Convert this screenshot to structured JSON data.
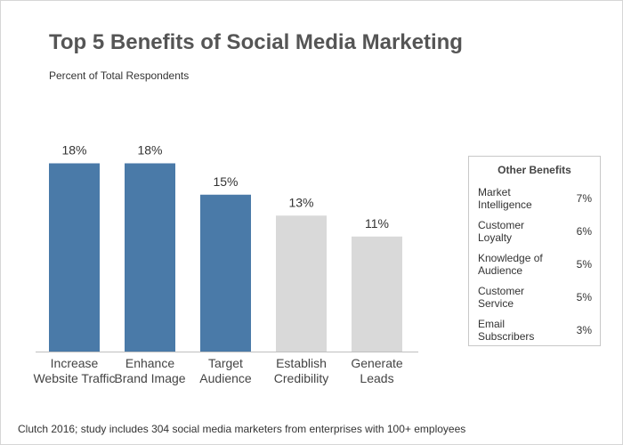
{
  "header": {
    "title": "Top 5 Benefits of Social Media Marketing",
    "subtitle": "Percent of Total Respondents"
  },
  "chart_data": {
    "type": "bar",
    "title": "Top 5 Benefits of Social Media Marketing",
    "subtitle": "Percent of Total Respondents",
    "categories": [
      [
        "Increase",
        "Website Traffic"
      ],
      [
        "Enhance",
        "Brand Image"
      ],
      [
        "Target",
        "Audience"
      ],
      [
        "Establish",
        "Credibility"
      ],
      [
        "Generate",
        "Leads"
      ]
    ],
    "values": [
      18,
      18,
      15,
      13,
      11
    ],
    "value_labels": [
      "18%",
      "18%",
      "15%",
      "13%",
      "11%"
    ],
    "highlighted": [
      true,
      true,
      true,
      false,
      false
    ],
    "colors": {
      "highlight": "#4a7aa8",
      "muted": "#d9d9d9"
    },
    "ylim": [
      0,
      20
    ],
    "xlabel": "",
    "ylabel": "",
    "grid": false
  },
  "other_benefits": {
    "title": "Other Benefits",
    "items": [
      {
        "label": "Market Intelligence",
        "value": "7%"
      },
      {
        "label": "Customer Loyalty",
        "value": "6%"
      },
      {
        "label": "Knowledge of Audience",
        "value": "5%"
      },
      {
        "label": "Customer Service",
        "value": "5%"
      },
      {
        "label": "Email Subscribers",
        "value": "3%"
      }
    ]
  },
  "footnote": "Clutch 2016; study includes 304 social media marketers from enterprises with 100+ employees"
}
